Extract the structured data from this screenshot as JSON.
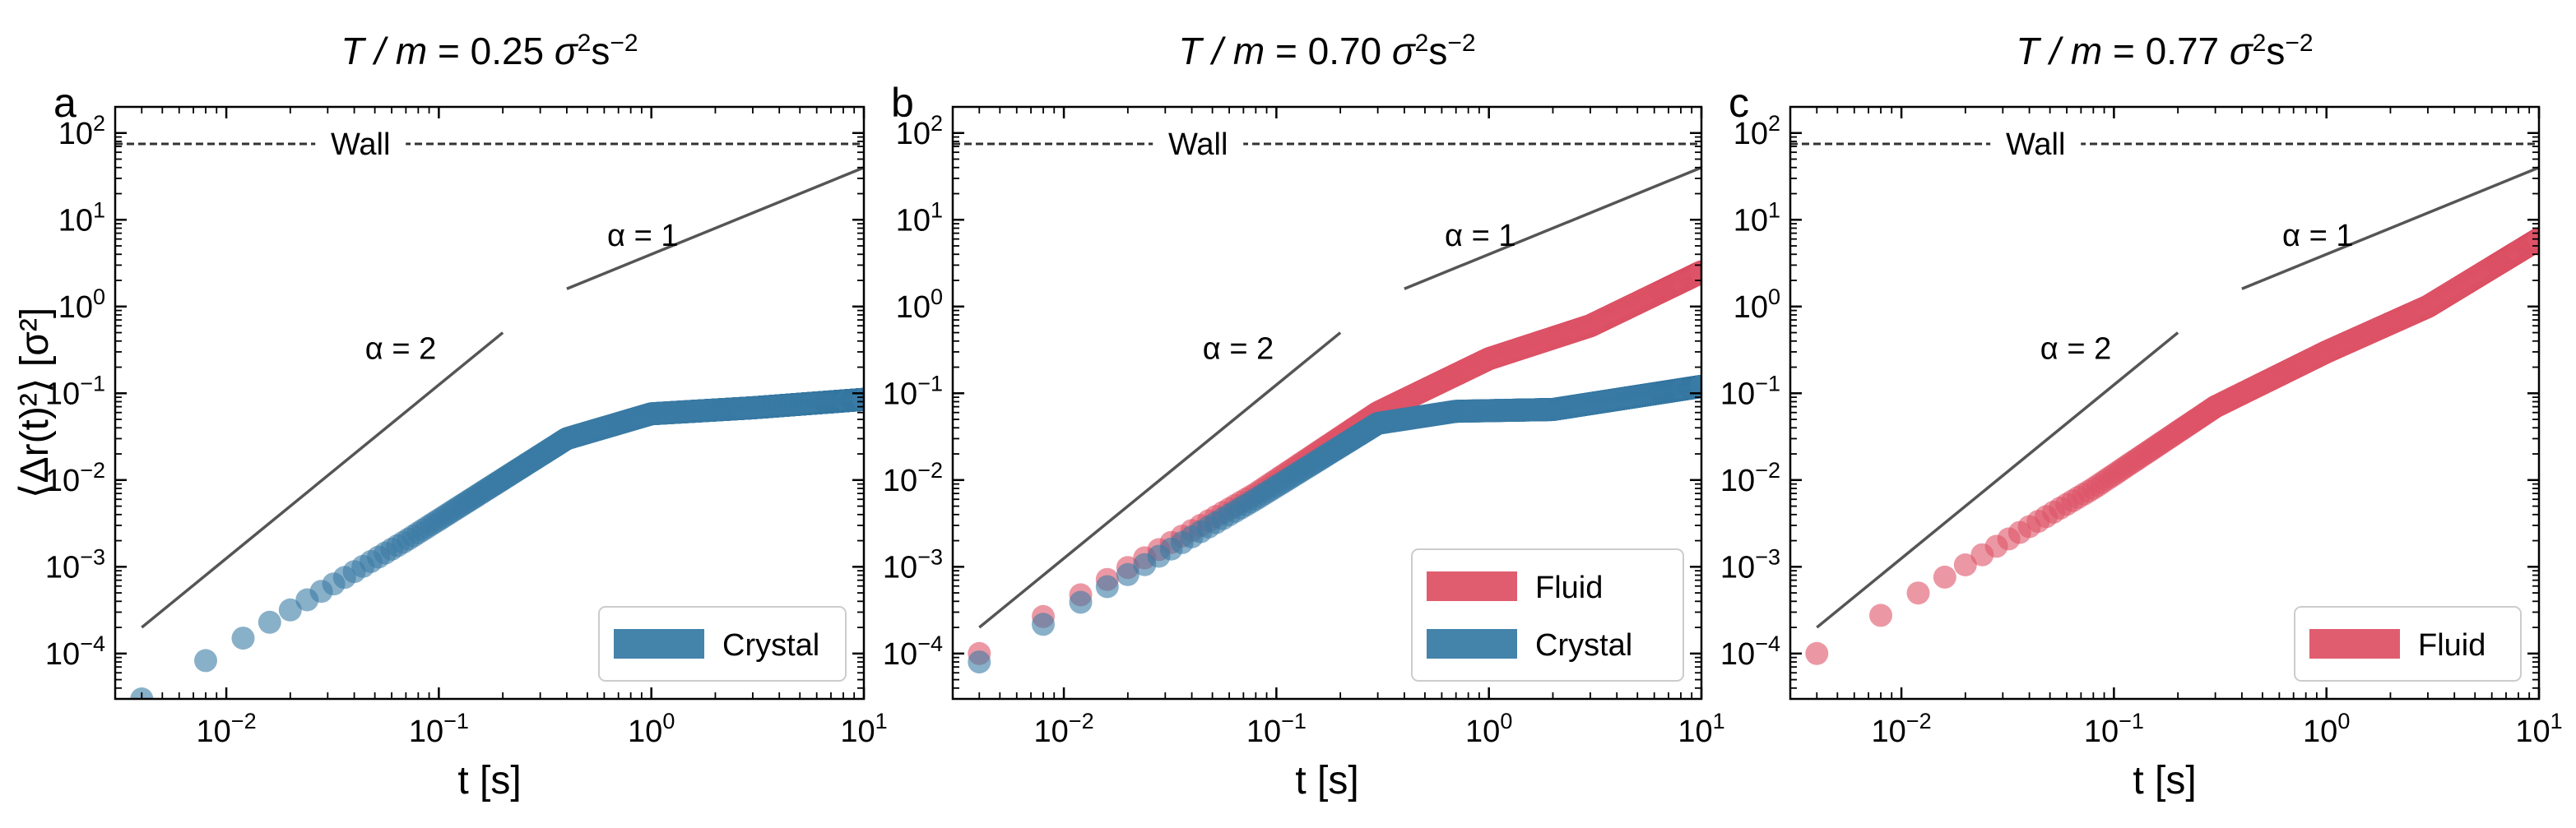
{
  "chart_data": [
    {
      "type": "scatter",
      "panel": "a",
      "title": {
        "prefix": "T / m",
        "value": "0.25",
        "unit_base": "σ",
        "unit_base_exp": "2",
        "unit_second": "s",
        "unit_second_exp": "−2"
      },
      "xlabel": "t [s]",
      "ylabel": "⟨Δr(t)²⟩ [σ²]",
      "xscale": "log",
      "yscale": "log",
      "xlim": [
        0.003,
        10
      ],
      "ylim": [
        3e-05,
        200
      ],
      "x_ticks": [
        {
          "base": "10",
          "exp": "−2",
          "value": 0.01
        },
        {
          "base": "10",
          "exp": "−1",
          "value": 0.1
        },
        {
          "base": "10",
          "exp": "0",
          "value": 1
        },
        {
          "base": "10",
          "exp": "1",
          "value": 10
        }
      ],
      "y_ticks": [
        {
          "base": "10",
          "exp": "−4",
          "value": 0.0001
        },
        {
          "base": "10",
          "exp": "−3",
          "value": 0.001
        },
        {
          "base": "10",
          "exp": "−2",
          "value": 0.01
        },
        {
          "base": "10",
          "exp": "−1",
          "value": 0.1
        },
        {
          "base": "10",
          "exp": "0",
          "value": 1
        },
        {
          "base": "10",
          "exp": "1",
          "value": 10
        },
        {
          "base": "10",
          "exp": "2",
          "value": 100
        }
      ],
      "wall": {
        "label": "Wall",
        "y": 75
      },
      "guides": [
        {
          "label": "α = 2",
          "slope": 2,
          "x": [
            0.004,
            0.2
          ],
          "y": [
            0.0002,
            0.5
          ],
          "label_at": [
            0.045,
            0.25
          ]
        },
        {
          "label": "α = 1",
          "slope": 1,
          "x": [
            0.4,
            10
          ],
          "y": [
            1.6,
            40
          ],
          "label_at": [
            0.62,
            5
          ]
        }
      ],
      "series": [
        {
          "name": "Crystal",
          "color": "#3a7ca5",
          "x0": 0.004,
          "step": 0.004,
          "segments": [
            [
              0.004,
              3e-05
            ],
            [
              0.07,
              0.002
            ],
            [
              0.4,
              0.03
            ],
            [
              1.0,
              0.058
            ],
            [
              3.0,
              0.068
            ],
            [
              10,
              0.085
            ]
          ]
        }
      ],
      "legend": [
        "Crystal"
      ]
    },
    {
      "type": "scatter",
      "panel": "b",
      "title": {
        "prefix": "T / m",
        "value": "0.70",
        "unit_base": "σ",
        "unit_base_exp": "2",
        "unit_second": "s",
        "unit_second_exp": "−2"
      },
      "xlabel": "t [s]",
      "ylabel": "",
      "xscale": "log",
      "yscale": "log",
      "xlim": [
        0.003,
        10
      ],
      "ylim": [
        3e-05,
        200
      ],
      "x_ticks": [
        {
          "base": "10",
          "exp": "−2",
          "value": 0.01
        },
        {
          "base": "10",
          "exp": "−1",
          "value": 0.1
        },
        {
          "base": "10",
          "exp": "0",
          "value": 1
        },
        {
          "base": "10",
          "exp": "1",
          "value": 10
        }
      ],
      "y_ticks": [
        {
          "base": "10",
          "exp": "−4",
          "value": 0.0001
        },
        {
          "base": "10",
          "exp": "−3",
          "value": 0.001
        },
        {
          "base": "10",
          "exp": "−2",
          "value": 0.01
        },
        {
          "base": "10",
          "exp": "−1",
          "value": 0.1
        },
        {
          "base": "10",
          "exp": "0",
          "value": 1
        },
        {
          "base": "10",
          "exp": "1",
          "value": 10
        },
        {
          "base": "10",
          "exp": "2",
          "value": 100
        }
      ],
      "wall": {
        "label": "Wall",
        "y": 75
      },
      "guides": [
        {
          "label": "α = 2",
          "slope": 2,
          "x": [
            0.004,
            0.2
          ],
          "y": [
            0.0002,
            0.5
          ],
          "label_at": [
            0.045,
            0.25
          ]
        },
        {
          "label": "α = 1",
          "slope": 1,
          "x": [
            0.4,
            10
          ],
          "y": [
            1.6,
            40
          ],
          "label_at": [
            0.62,
            5
          ]
        }
      ],
      "series": [
        {
          "name": "Fluid",
          "color": "#de5468",
          "x0": 0.004,
          "step": 0.004,
          "segments": [
            [
              0.004,
              0.0001
            ],
            [
              0.08,
              0.007
            ],
            [
              0.3,
              0.06
            ],
            [
              1.0,
              0.25
            ],
            [
              3.0,
              0.6
            ],
            [
              10,
              2.5
            ]
          ]
        },
        {
          "name": "Crystal",
          "color": "#3a7ca5",
          "x0": 0.004,
          "step": 0.004,
          "segments": [
            [
              0.004,
              8e-05
            ],
            [
              0.08,
              0.006
            ],
            [
              0.3,
              0.045
            ],
            [
              0.7,
              0.062
            ],
            [
              2.0,
              0.065
            ],
            [
              10,
              0.12
            ]
          ]
        }
      ],
      "legend": [
        "Fluid",
        "Crystal"
      ]
    },
    {
      "type": "scatter",
      "panel": "c",
      "title": {
        "prefix": "T / m",
        "value": "0.77",
        "unit_base": "σ",
        "unit_base_exp": "2",
        "unit_second": "s",
        "unit_second_exp": "−2"
      },
      "xlabel": "t [s]",
      "ylabel": "",
      "xscale": "log",
      "yscale": "log",
      "xlim": [
        0.003,
        10
      ],
      "ylim": [
        3e-05,
        200
      ],
      "x_ticks": [
        {
          "base": "10",
          "exp": "−2",
          "value": 0.01
        },
        {
          "base": "10",
          "exp": "−1",
          "value": 0.1
        },
        {
          "base": "10",
          "exp": "0",
          "value": 1
        },
        {
          "base": "10",
          "exp": "1",
          "value": 10
        }
      ],
      "y_ticks": [
        {
          "base": "10",
          "exp": "−4",
          "value": 0.0001
        },
        {
          "base": "10",
          "exp": "−3",
          "value": 0.001
        },
        {
          "base": "10",
          "exp": "−2",
          "value": 0.01
        },
        {
          "base": "10",
          "exp": "−1",
          "value": 0.1
        },
        {
          "base": "10",
          "exp": "0",
          "value": 1
        },
        {
          "base": "10",
          "exp": "1",
          "value": 10
        },
        {
          "base": "10",
          "exp": "2",
          "value": 100
        }
      ],
      "wall": {
        "label": "Wall",
        "y": 75
      },
      "guides": [
        {
          "label": "α = 2",
          "slope": 2,
          "x": [
            0.004,
            0.2
          ],
          "y": [
            0.0002,
            0.5
          ],
          "label_at": [
            0.045,
            0.25
          ]
        },
        {
          "label": "α = 1",
          "slope": 1,
          "x": [
            0.4,
            10
          ],
          "y": [
            1.6,
            40
          ],
          "label_at": [
            0.62,
            5
          ]
        }
      ],
      "series": [
        {
          "name": "Fluid",
          "color": "#de5468",
          "x0": 0.004,
          "step": 0.004,
          "segments": [
            [
              0.004,
              0.0001
            ],
            [
              0.08,
              0.008
            ],
            [
              0.3,
              0.07
            ],
            [
              1.0,
              0.3
            ],
            [
              3.0,
              1.0
            ],
            [
              10,
              6.0
            ]
          ]
        }
      ],
      "legend": [
        "Fluid"
      ]
    }
  ]
}
